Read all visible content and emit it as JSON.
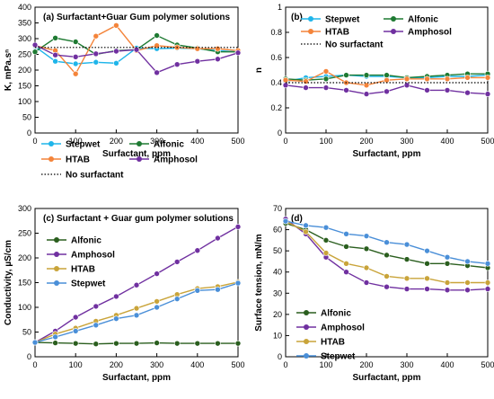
{
  "chart_data": [
    {
      "type": "line",
      "title": "(a) Surfactant+Guar Gum polymer solutions",
      "xlabel": "Surfactant, ppm",
      "ylabel": "K, mPa.sⁿ",
      "xlim": [
        0,
        500
      ],
      "ylim": [
        0,
        400
      ],
      "xticks": [
        0,
        100,
        200,
        300,
        400,
        500
      ],
      "yticks": [
        0,
        50,
        100,
        150,
        200,
        250,
        300,
        350,
        400
      ],
      "legend": "bottom-left",
      "legend_columns": 2,
      "series": [
        {
          "name": "Stepwet",
          "color": "#1fb5ea",
          "marker": "circle",
          "x": [
            0,
            50,
            100,
            150,
            200,
            250,
            300,
            350,
            400,
            450,
            500
          ],
          "y": [
            275,
            228,
            220,
            225,
            222,
            270,
            268,
            270,
            268,
            262,
            258
          ]
        },
        {
          "name": "Alfonic",
          "color": "#1e7a32",
          "marker": "circle",
          "x": [
            0,
            50,
            100,
            150,
            200,
            250,
            300,
            350,
            400,
            450,
            500
          ],
          "y": [
            258,
            302,
            290,
            250,
            262,
            265,
            310,
            280,
            270,
            258,
            258
          ]
        },
        {
          "name": "HTAB",
          "color": "#f4843a",
          "marker": "circle",
          "x": [
            0,
            50,
            100,
            150,
            200,
            250,
            300,
            350,
            400,
            450,
            500
          ],
          "y": [
            278,
            262,
            188,
            308,
            342,
            262,
            278,
            272,
            268,
            268,
            262
          ]
        },
        {
          "name": "Amphosol",
          "color": "#7030a0",
          "marker": "circle",
          "x": [
            0,
            50,
            100,
            150,
            200,
            250,
            300,
            350,
            400,
            450,
            500
          ],
          "y": [
            280,
            248,
            242,
            252,
            260,
            265,
            192,
            218,
            228,
            235,
            255
          ]
        },
        {
          "name": "No surfactant",
          "color": "#000000",
          "style": "dotted",
          "x": [
            0,
            500
          ],
          "y": [
            272,
            272
          ]
        }
      ]
    },
    {
      "type": "line",
      "title": "(b)",
      "xlabel": "Surfactant, ppm",
      "ylabel": "n",
      "xlim": [
        0,
        500
      ],
      "ylim": [
        0,
        1
      ],
      "xticks": [
        0,
        100,
        200,
        300,
        400,
        500
      ],
      "yticks": [
        0,
        0.2,
        0.4,
        0.6,
        0.8,
        1
      ],
      "legend": "top-right",
      "legend_columns": 2,
      "series": [
        {
          "name": "Stepwet",
          "color": "#1fb5ea",
          "marker": "circle",
          "x": [
            0,
            50,
            100,
            150,
            200,
            250,
            300,
            350,
            400,
            450,
            500
          ],
          "y": [
            0.41,
            0.44,
            0.45,
            0.46,
            0.45,
            0.45,
            0.44,
            0.44,
            0.45,
            0.45,
            0.46
          ]
        },
        {
          "name": "Alfonic",
          "color": "#1e7a32",
          "marker": "circle",
          "x": [
            0,
            50,
            100,
            150,
            200,
            250,
            300,
            350,
            400,
            450,
            500
          ],
          "y": [
            0.43,
            0.42,
            0.43,
            0.46,
            0.46,
            0.46,
            0.44,
            0.45,
            0.46,
            0.47,
            0.47
          ]
        },
        {
          "name": "HTAB",
          "color": "#f4843a",
          "marker": "circle",
          "x": [
            0,
            50,
            100,
            150,
            200,
            250,
            300,
            350,
            400,
            450,
            500
          ],
          "y": [
            0.42,
            0.41,
            0.49,
            0.4,
            0.38,
            0.42,
            0.43,
            0.43,
            0.43,
            0.44,
            0.44
          ]
        },
        {
          "name": "Amphosol",
          "color": "#7030a0",
          "marker": "circle",
          "x": [
            0,
            50,
            100,
            150,
            200,
            250,
            300,
            350,
            400,
            450,
            500
          ],
          "y": [
            0.38,
            0.36,
            0.36,
            0.34,
            0.31,
            0.33,
            0.38,
            0.34,
            0.34,
            0.32,
            0.31
          ]
        },
        {
          "name": "No surfactant",
          "color": "#000000",
          "style": "dotted",
          "x": [
            0,
            500
          ],
          "y": [
            0.4,
            0.4
          ]
        }
      ]
    },
    {
      "type": "line",
      "title": "(c) Surfactant + Guar gum polymer solutions",
      "xlabel": "Surfactant, ppm",
      "ylabel": "Conductivity, µS/cm",
      "xlim": [
        0,
        500
      ],
      "ylim": [
        0,
        300
      ],
      "xticks": [
        0,
        100,
        200,
        300,
        400,
        500
      ],
      "yticks": [
        0,
        50,
        100,
        150,
        200,
        250,
        300
      ],
      "legend": "top-left",
      "legend_columns": 1,
      "series": [
        {
          "name": "Alfonic",
          "color": "#2a5e1e",
          "marker": "circle",
          "x": [
            0,
            50,
            100,
            150,
            200,
            250,
            300,
            350,
            400,
            450,
            500
          ],
          "y": [
            29,
            28,
            27,
            26,
            27,
            27,
            28,
            27,
            27,
            27,
            27
          ]
        },
        {
          "name": "Amphosol",
          "color": "#7030a0",
          "marker": "circle",
          "x": [
            0,
            50,
            100,
            150,
            200,
            250,
            300,
            350,
            400,
            450,
            500
          ],
          "y": [
            29,
            52,
            80,
            102,
            122,
            145,
            168,
            192,
            215,
            240,
            263
          ]
        },
        {
          "name": "HTAB",
          "color": "#c9a43a",
          "marker": "circle",
          "x": [
            0,
            50,
            100,
            150,
            200,
            250,
            300,
            350,
            400,
            450,
            500
          ],
          "y": [
            29,
            46,
            58,
            72,
            84,
            98,
            112,
            126,
            138,
            142,
            151
          ]
        },
        {
          "name": "Stepwet",
          "color": "#4a8fd8",
          "marker": "circle",
          "x": [
            0,
            50,
            100,
            150,
            200,
            250,
            300,
            350,
            400,
            450,
            500
          ],
          "y": [
            29,
            40,
            52,
            64,
            77,
            84,
            100,
            117,
            134,
            136,
            149
          ]
        }
      ]
    },
    {
      "type": "line",
      "title": "(d)",
      "xlabel": "Surfactant, ppm",
      "ylabel": "Surface tension, mN/m",
      "xlim": [
        0,
        500
      ],
      "ylim": [
        0,
        70
      ],
      "xticks": [
        0,
        100,
        200,
        300,
        400,
        500
      ],
      "yticks": [
        0,
        10,
        20,
        30,
        40,
        50,
        60,
        70
      ],
      "legend": "bottom-left",
      "legend_columns": 1,
      "series": [
        {
          "name": "Alfonic",
          "color": "#2a5e1e",
          "marker": "circle",
          "x": [
            0,
            50,
            100,
            150,
            200,
            250,
            300,
            350,
            400,
            450,
            500
          ],
          "y": [
            63,
            60,
            55,
            52,
            51,
            48,
            46,
            44,
            44,
            43,
            42
          ]
        },
        {
          "name": "Amphosol",
          "color": "#7030a0",
          "marker": "circle",
          "x": [
            0,
            50,
            100,
            150,
            200,
            250,
            300,
            350,
            400,
            450,
            500
          ],
          "y": [
            65,
            58,
            47,
            40,
            35,
            33,
            32,
            32,
            31.5,
            31.5,
            32
          ]
        },
        {
          "name": "HTAB",
          "color": "#c9a43a",
          "marker": "circle",
          "x": [
            0,
            50,
            100,
            150,
            200,
            250,
            300,
            350,
            400,
            450,
            500
          ],
          "y": [
            64,
            59,
            49,
            44,
            42,
            38,
            37,
            37,
            35,
            35,
            35
          ]
        },
        {
          "name": "Stepwet",
          "color": "#4a8fd8",
          "marker": "circle",
          "x": [
            0,
            50,
            100,
            150,
            200,
            250,
            300,
            350,
            400,
            450,
            500
          ],
          "y": [
            64,
            62,
            61,
            58,
            57,
            54,
            53,
            50,
            47,
            45,
            44
          ]
        }
      ]
    }
  ]
}
